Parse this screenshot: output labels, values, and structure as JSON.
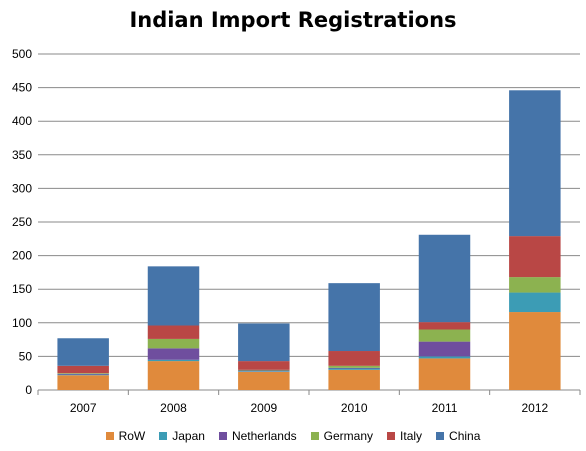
{
  "chart_data": {
    "type": "bar",
    "stacked": true,
    "title": "Indian Import Registrations",
    "xlabel": "",
    "ylabel": "",
    "categories": [
      "2007",
      "2008",
      "2009",
      "2010",
      "2011",
      "2012"
    ],
    "ylim": [
      0,
      500
    ],
    "yticks": [
      0,
      50,
      100,
      150,
      200,
      250,
      300,
      350,
      400,
      450,
      500
    ],
    "grid": true,
    "legend_position": "bottom",
    "series": [
      {
        "name": "RoW",
        "color": "#e08a3c",
        "values": [
          22,
          43,
          27,
          30,
          47,
          116
        ]
      },
      {
        "name": "Japan",
        "color": "#3c9cb5",
        "values": [
          1,
          2,
          1,
          2,
          3,
          29
        ]
      },
      {
        "name": "Netherlands",
        "color": "#6f4e9e",
        "values": [
          1,
          17,
          1,
          1,
          22,
          0
        ]
      },
      {
        "name": "Germany",
        "color": "#8cb250",
        "values": [
          1,
          14,
          1,
          3,
          18,
          23
        ]
      },
      {
        "name": "Italy",
        "color": "#b94745",
        "values": [
          11,
          20,
          13,
          22,
          11,
          61
        ]
      },
      {
        "name": "China",
        "color": "#4574a9",
        "values": [
          41,
          88,
          56,
          101,
          130,
          217
        ]
      }
    ]
  }
}
